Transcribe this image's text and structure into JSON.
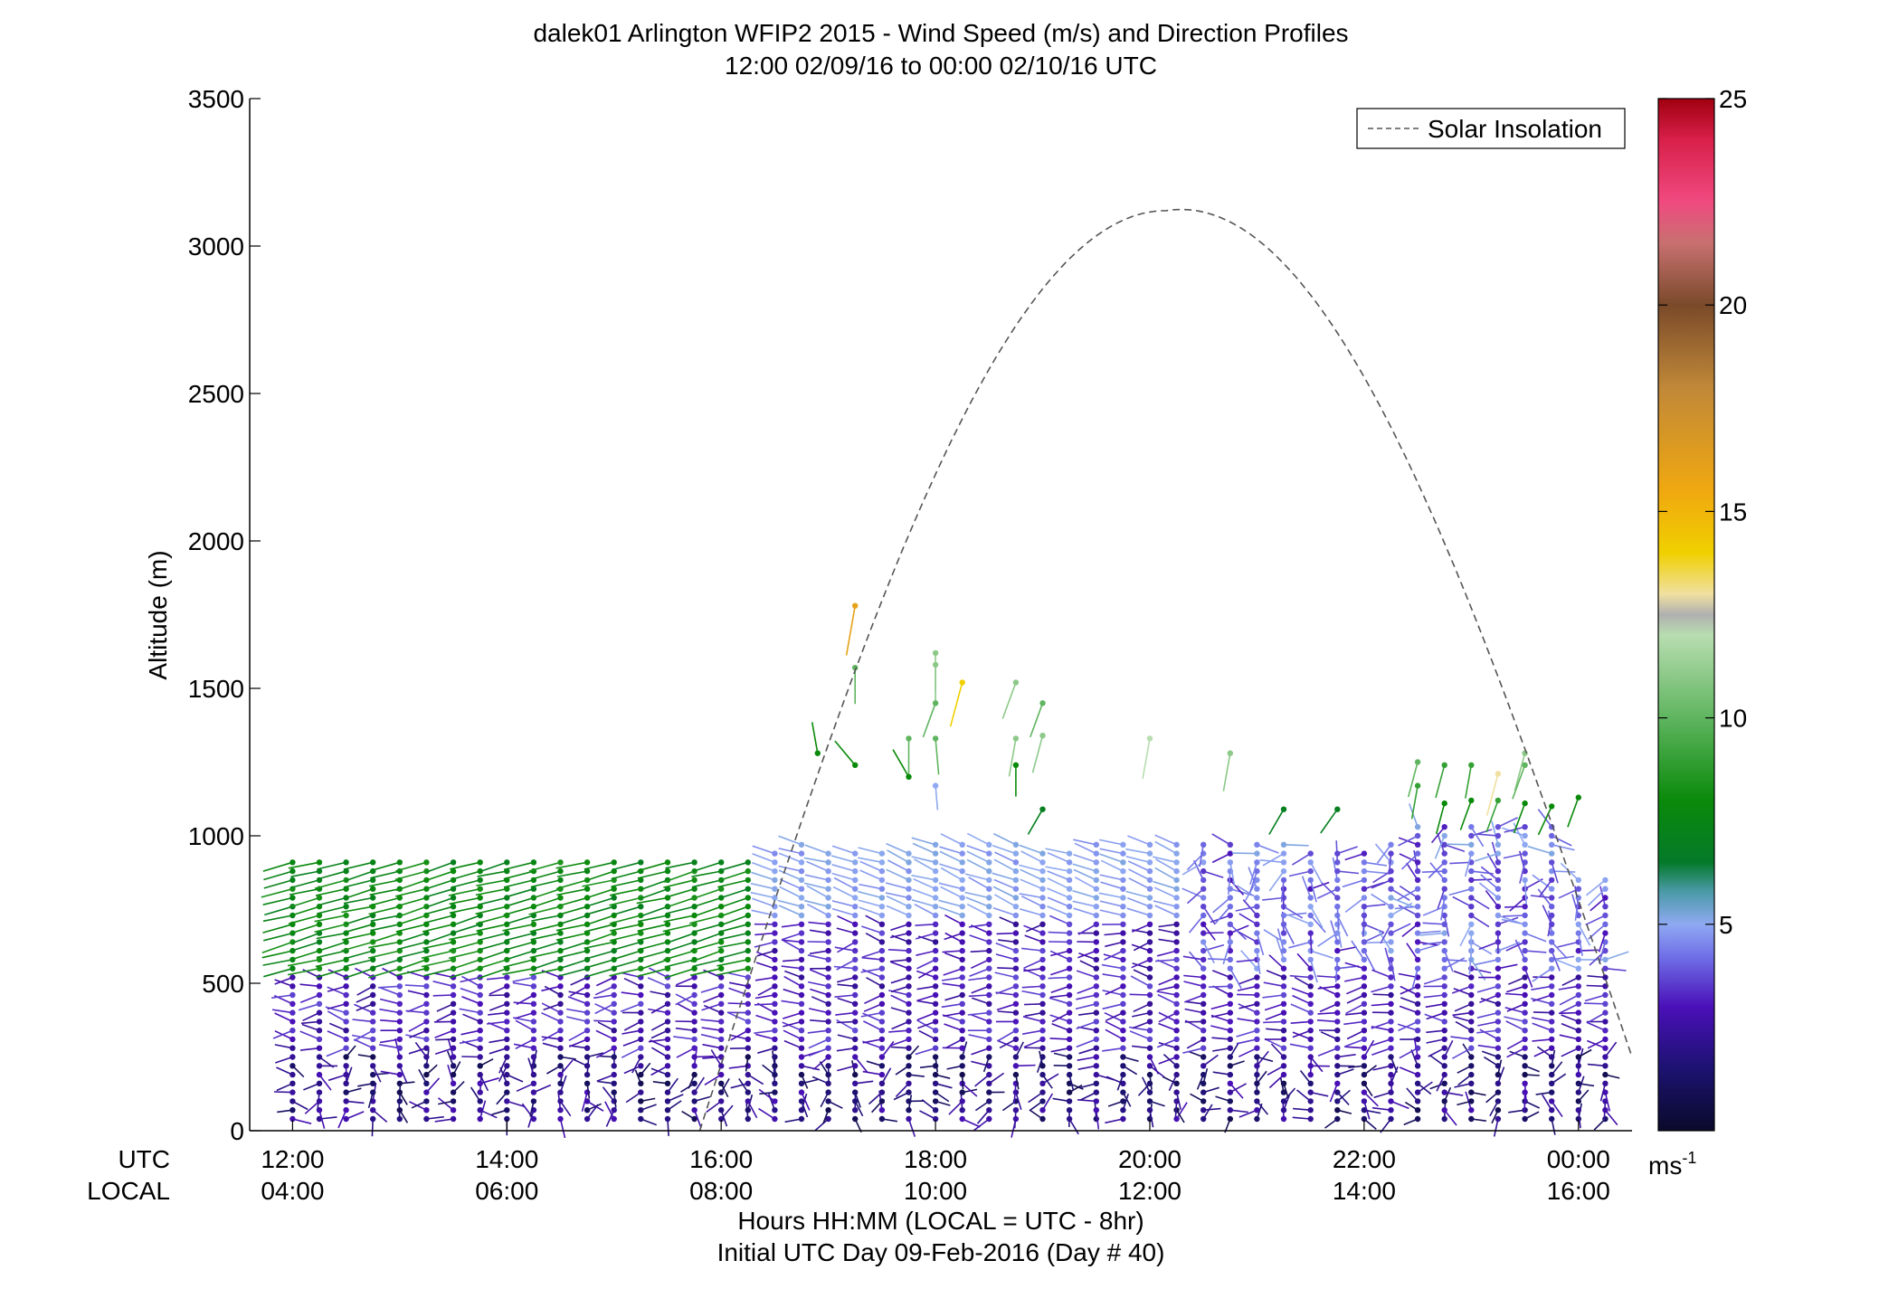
{
  "chart_data": {
    "type": "wind-barb-profile",
    "title": "dalek01 Arlington WFIP2 2015 - Wind Speed (m/s) and Direction Profiles",
    "subtitle": "12:00 02/09/16 to 00:00 02/10/16  UTC",
    "ylabel": "Altitude (m)",
    "ylim": [
      0,
      3500
    ],
    "yticks": [
      0,
      500,
      1000,
      1500,
      2000,
      2500,
      3000,
      3500
    ],
    "xlim_hours": [
      11.6,
      24.5
    ],
    "utc_row_label": "UTC",
    "local_row_label": "LOCAL",
    "utc_ticks": [
      "12:00",
      "14:00",
      "16:00",
      "18:00",
      "20:00",
      "22:00",
      "00:00"
    ],
    "local_ticks": [
      "04:00",
      "06:00",
      "08:00",
      "10:00",
      "12:00",
      "14:00",
      "16:00"
    ],
    "utc_tick_hours": [
      12,
      14,
      16,
      18,
      20,
      22,
      24
    ],
    "xlabel_line1": "Hours HH:MM  (LOCAL = UTC - 8hr)",
    "xlabel_line2": "Initial UTC Day 09-Feb-2016 (Day # 40)",
    "legend": {
      "label": "Solar Insolation",
      "placement": "top-right",
      "style": "dashed",
      "color": "#555555"
    },
    "solar_insolation": {
      "start_hour": 15.8,
      "end_hour": 24.5,
      "peak_hour": 20.15,
      "peak_altitude": 3120
    },
    "colorbar": {
      "min": 0,
      "max": 25,
      "ticks": [
        5,
        10,
        15,
        20,
        25
      ],
      "unit_label": "ms",
      "unit_exponent": "-1",
      "stops": [
        {
          "v": 0,
          "c": "#0a0a2a"
        },
        {
          "v": 1.5,
          "c": "#1c1270"
        },
        {
          "v": 3,
          "c": "#4a10b8"
        },
        {
          "v": 4.2,
          "c": "#6f6ee6"
        },
        {
          "v": 5,
          "c": "#8fa9f2"
        },
        {
          "v": 5.8,
          "c": "#4a9aa6"
        },
        {
          "v": 6.5,
          "c": "#047a2a"
        },
        {
          "v": 8,
          "c": "#0a8a0a"
        },
        {
          "v": 10,
          "c": "#5fb55f"
        },
        {
          "v": 12,
          "c": "#b8ddb0"
        },
        {
          "v": 12.5,
          "c": "#b0b0b0"
        },
        {
          "v": 13,
          "c": "#f0e0a0"
        },
        {
          "v": 14,
          "c": "#f0d000"
        },
        {
          "v": 15.5,
          "c": "#f0a810"
        },
        {
          "v": 18,
          "c": "#c08838"
        },
        {
          "v": 20,
          "c": "#7a4a2a"
        },
        {
          "v": 21.5,
          "c": "#c87070"
        },
        {
          "v": 22.5,
          "c": "#f04a80"
        },
        {
          "v": 24,
          "c": "#d8204a"
        },
        {
          "v": 25,
          "c": "#a00010"
        }
      ]
    },
    "profiles": {
      "time_step_hours": 0.25,
      "start_hour": 12.0,
      "end_hour": 24.25,
      "ground_altitude": 40,
      "level_spacing_m": 30,
      "upper_wind_samples": [
        {
          "t": 17.25,
          "alt": 1780,
          "speed": 16,
          "dir": 190
        },
        {
          "t": 17.25,
          "alt": 1570,
          "speed": 10,
          "dir": 180
        },
        {
          "t": 17.25,
          "alt": 1240,
          "speed": 8,
          "dir": 320
        },
        {
          "t": 16.9,
          "alt": 1280,
          "speed": 8,
          "dir": 350
        },
        {
          "t": 18.0,
          "alt": 1620,
          "speed": 11,
          "dir": 180
        },
        {
          "t": 18.0,
          "alt": 1580,
          "speed": 11,
          "dir": 180
        },
        {
          "t": 18.0,
          "alt": 1450,
          "speed": 10,
          "dir": 200
        },
        {
          "t": 18.0,
          "alt": 1330,
          "speed": 10,
          "dir": 175
        },
        {
          "t": 18.0,
          "alt": 1170,
          "speed": 5,
          "dir": 175
        },
        {
          "t": 17.75,
          "alt": 1330,
          "speed": 10,
          "dir": 180
        },
        {
          "t": 17.75,
          "alt": 1200,
          "speed": 8,
          "dir": 330
        },
        {
          "t": 18.25,
          "alt": 1520,
          "speed": 14,
          "dir": 195
        },
        {
          "t": 18.75,
          "alt": 1520,
          "speed": 11,
          "dir": 200
        },
        {
          "t": 18.75,
          "alt": 1330,
          "speed": 11,
          "dir": 190
        },
        {
          "t": 18.75,
          "alt": 1240,
          "speed": 8,
          "dir": 180
        },
        {
          "t": 19.0,
          "alt": 1450,
          "speed": 10,
          "dir": 200
        },
        {
          "t": 19.0,
          "alt": 1340,
          "speed": 11,
          "dir": 195
        },
        {
          "t": 19.0,
          "alt": 1090,
          "speed": 7,
          "dir": 210
        },
        {
          "t": 20.0,
          "alt": 1330,
          "speed": 12,
          "dir": 190
        },
        {
          "t": 20.75,
          "alt": 1280,
          "speed": 11,
          "dir": 190
        },
        {
          "t": 21.25,
          "alt": 1090,
          "speed": 7,
          "dir": 210
        },
        {
          "t": 21.75,
          "alt": 1090,
          "speed": 7,
          "dir": 215
        },
        {
          "t": 22.5,
          "alt": 1250,
          "speed": 10,
          "dir": 195
        },
        {
          "t": 22.5,
          "alt": 1170,
          "speed": 9,
          "dir": 190
        },
        {
          "t": 22.75,
          "alt": 1240,
          "speed": 9,
          "dir": 195
        },
        {
          "t": 22.75,
          "alt": 1110,
          "speed": 8,
          "dir": 195
        },
        {
          "t": 23.0,
          "alt": 1240,
          "speed": 9,
          "dir": 190
        },
        {
          "t": 23.0,
          "alt": 1120,
          "speed": 8,
          "dir": 200
        },
        {
          "t": 23.25,
          "alt": 1210,
          "speed": 13,
          "dir": 195
        },
        {
          "t": 23.25,
          "alt": 1120,
          "speed": 9,
          "dir": 200
        },
        {
          "t": 23.5,
          "alt": 1280,
          "speed": 11,
          "dir": 195
        },
        {
          "t": 23.5,
          "alt": 1240,
          "speed": 10,
          "dir": 200
        },
        {
          "t": 23.5,
          "alt": 1110,
          "speed": 8,
          "dir": 200
        },
        {
          "t": 23.75,
          "alt": 1100,
          "speed": 8,
          "dir": 205
        },
        {
          "t": 24.0,
          "alt": 1130,
          "speed": 8,
          "dir": 200
        }
      ]
    }
  }
}
